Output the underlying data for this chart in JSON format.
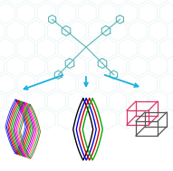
{
  "bg_color": "#ffffff",
  "arrow_color": "#1ab0e0",
  "molecule_color": "#5ab5b5",
  "hex_bg_color": "#a8d8d8",
  "left_diamond_colors": [
    "#3333cc",
    "#0000ff",
    "#cc0000",
    "#ff0000",
    "#009900",
    "#00bb00",
    "#880088",
    "#cc00cc",
    "#ff00ff",
    "#ff8800",
    "#00aaaa",
    "#886600"
  ],
  "mid_diamond_colors": [
    "#000000",
    "#0000dd",
    "#cc0000",
    "#00aa00"
  ],
  "box_color1": "#dd3366",
  "box_color2": "#555555",
  "figsize": [
    1.91,
    1.89
  ],
  "dpi": 100
}
